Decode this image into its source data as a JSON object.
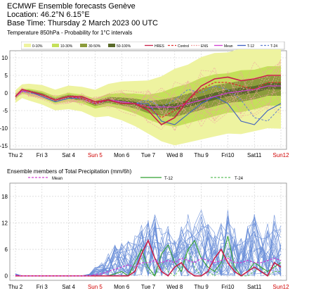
{
  "header": {
    "line1": "ECMWF Ensemble forecasts Genève",
    "line2": "Location:  46.2°N 6.15°E",
    "line3": "Base Time: Thursday  2 March 2023 00 UTC"
  },
  "colors": {
    "prob_0_10": "#eef3a0",
    "prob_10_30": "#c4e05a",
    "prob_30_50": "#8c9c3c",
    "prob_50_100": "#5a6a2a",
    "hres": "#c8204a",
    "control": "#e03030",
    "ens": "#f0a0a0",
    "mean": "#d040d0",
    "t12": "#4060c0",
    "t24": "#6080d0",
    "ens_precip": "#6a8ed8",
    "sunday": "#d00000"
  },
  "chart_data": [
    {
      "type": "line",
      "title": "Temperature 850hPa - Probability for 1°C intervals",
      "prob_legend": [
        "0-10%",
        "10-30%",
        "30-50%",
        "50-100%"
      ],
      "series_legend": [
        "HRES",
        "Control",
        "ENS",
        "Mean",
        "T-12",
        "T-24"
      ],
      "ylim": [
        -16,
        12
      ],
      "yticks": [
        -15,
        -10,
        -5,
        0,
        5,
        10
      ],
      "days": [
        "Thu 2",
        "Fri 3",
        "Sat 4",
        "Sun 5",
        "Mon 6",
        "Tue 7",
        "Wed 8",
        "Thu 9",
        "Fri10",
        "Sat11",
        "Sun12"
      ],
      "x": [
        0,
        0.25,
        0.5,
        1,
        1.5,
        2,
        2.5,
        3,
        3.5,
        4,
        4.5,
        5,
        5.5,
        6,
        6.5,
        7,
        7.5,
        8,
        8.5,
        9,
        9.5,
        10
      ],
      "mean": [
        -1,
        0.5,
        0.5,
        -0.5,
        -2,
        -1,
        -1.5,
        -3,
        -2,
        -2.5,
        -3,
        -4,
        -4,
        -4,
        -3,
        -2,
        -1,
        0,
        0.5,
        1,
        2,
        2
      ],
      "p10": [
        -2,
        -0.5,
        -1,
        -2,
        -3.5,
        -3,
        -3.5,
        -5,
        -4.5,
        -5.5,
        -7,
        -9,
        -11,
        -12,
        -11,
        -10,
        -9,
        -8,
        -8,
        -7,
        -6,
        -6
      ],
      "p90": [
        0,
        1.5,
        1.5,
        1,
        -0.5,
        0.5,
        0,
        -1,
        0.5,
        1,
        1,
        1,
        2,
        4,
        5,
        7,
        8,
        8,
        9,
        9,
        10,
        10
      ],
      "hres": [
        -1,
        1,
        0.5,
        -0.5,
        -2,
        -1,
        -1,
        -2.5,
        -2,
        -3,
        -3,
        -5,
        -9,
        -7,
        -2,
        2,
        4,
        4.5,
        3.5,
        4,
        5,
        5
      ],
      "control": [
        -1,
        1,
        0.5,
        -0.5,
        -2,
        -1,
        -1.5,
        -3,
        -2,
        -3,
        -3,
        -4,
        -7,
        -5,
        -2,
        1,
        3,
        3,
        2,
        1,
        3,
        3
      ],
      "t12": [
        -1,
        0.5,
        0.5,
        -1,
        -2.5,
        -1.5,
        -1.5,
        -3,
        -2,
        -3,
        -3,
        -3,
        -8,
        -9,
        -6,
        -3,
        -1,
        -3,
        -8,
        -9,
        -5,
        -3
      ],
      "t24": [
        -1,
        0.5,
        0,
        -0.5,
        -2,
        -1,
        -1,
        -2.5,
        -2,
        -2.5,
        -3,
        -2,
        -4,
        -2,
        1,
        0,
        2,
        1,
        -2,
        -7,
        -8,
        -4
      ]
    },
    {
      "type": "line",
      "title": "Ensemble members of Total Precipitation (mm/6h)",
      "series_legend": [
        "Mean",
        "T-12",
        "T-24"
      ],
      "ylim": [
        -1,
        21
      ],
      "yticks": [
        0,
        6,
        12,
        18
      ],
      "days": [
        "Thu 2",
        "Fri 3",
        "Sat 4",
        "Sun 5",
        "Mon 6",
        "Tue 7",
        "Wed 8",
        "Thu 9",
        "Fri10",
        "Sat11",
        "Sun12"
      ],
      "members_max": [
        0.5,
        0,
        0,
        0,
        0,
        0,
        0,
        0,
        0,
        0,
        0,
        0.5,
        2,
        3,
        5,
        7,
        9,
        8,
        10,
        12,
        13,
        14,
        11,
        12,
        13,
        12,
        14,
        13,
        15,
        12,
        10,
        12,
        15,
        11,
        9,
        12,
        14,
        10,
        12,
        15,
        12
      ],
      "mean": [
        0.2,
        0,
        0,
        0,
        0,
        0,
        0,
        0,
        0,
        0,
        0,
        0,
        0.3,
        0.5,
        1,
        1.5,
        2,
        2.5,
        2,
        3,
        3,
        3.5,
        3,
        3.5,
        3,
        4,
        3.5,
        3,
        4,
        3.5,
        3,
        3.5,
        4,
        3,
        3,
        3.5,
        3,
        3,
        3.5,
        4,
        3.5
      ],
      "t12": [
        0,
        0,
        0,
        0,
        0,
        0,
        0,
        0,
        0,
        0,
        0,
        0,
        0,
        0,
        0,
        0.5,
        1,
        0,
        3,
        6,
        2,
        0,
        5,
        7,
        3,
        1,
        6,
        8,
        4,
        2,
        1,
        3,
        9,
        2,
        0,
        1,
        3,
        2,
        1,
        2,
        3
      ],
      "t24": [
        0,
        0,
        0,
        0,
        0,
        0,
        0,
        0,
        0,
        0,
        0,
        0,
        0,
        0,
        0,
        0,
        0,
        0,
        2,
        4,
        1,
        0,
        3,
        1,
        0,
        2,
        6,
        2,
        0,
        1,
        0,
        2,
        5,
        1,
        0,
        0,
        1,
        2,
        0,
        1,
        1
      ],
      "hres": [
        0,
        0,
        0,
        0,
        0,
        0,
        0,
        0,
        0,
        0,
        0,
        0,
        0,
        0,
        0,
        0,
        0,
        0,
        1,
        5,
        8,
        4,
        1,
        0,
        2,
        3,
        1,
        0,
        0,
        1,
        4,
        6,
        3,
        1,
        0,
        1,
        2,
        1,
        0,
        3,
        2
      ]
    }
  ]
}
